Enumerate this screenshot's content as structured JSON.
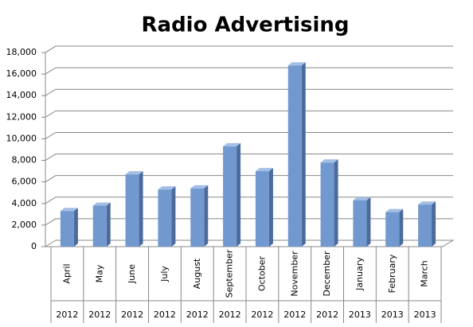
{
  "chart_data": {
    "type": "bar",
    "title": "Radio Advertising",
    "categories": [
      "April",
      "May",
      "June",
      "July",
      "August",
      "September",
      "October",
      "November",
      "December",
      "January",
      "February",
      "March"
    ],
    "years": [
      "2012",
      "2012",
      "2012",
      "2012",
      "2012",
      "2012",
      "2012",
      "2012",
      "2012",
      "2013",
      "2013",
      "2013"
    ],
    "values": [
      3300,
      3800,
      6700,
      5300,
      5400,
      9300,
      7000,
      16800,
      7800,
      4300,
      3200,
      3900
    ],
    "color": "#7199cf",
    "ylim": [
      0,
      18000
    ],
    "yticks": [
      0,
      {
        "value": 2000,
        "label": "2,000"
      },
      {
        "value": 4000,
        "label": "4,000"
      },
      {
        "value": 6000,
        "label": "6,000"
      },
      {
        "value": 8000,
        "label": "8,000"
      },
      {
        "value": 10000,
        "label": "10,000"
      },
      {
        "value": 12000,
        "label": "12,000"
      },
      {
        "value": 14000,
        "label": "14,000"
      },
      {
        "value": 16000,
        "label": "16,000"
      },
      {
        "value": 18000,
        "label": "18,000"
      }
    ],
    "grid": true
  }
}
